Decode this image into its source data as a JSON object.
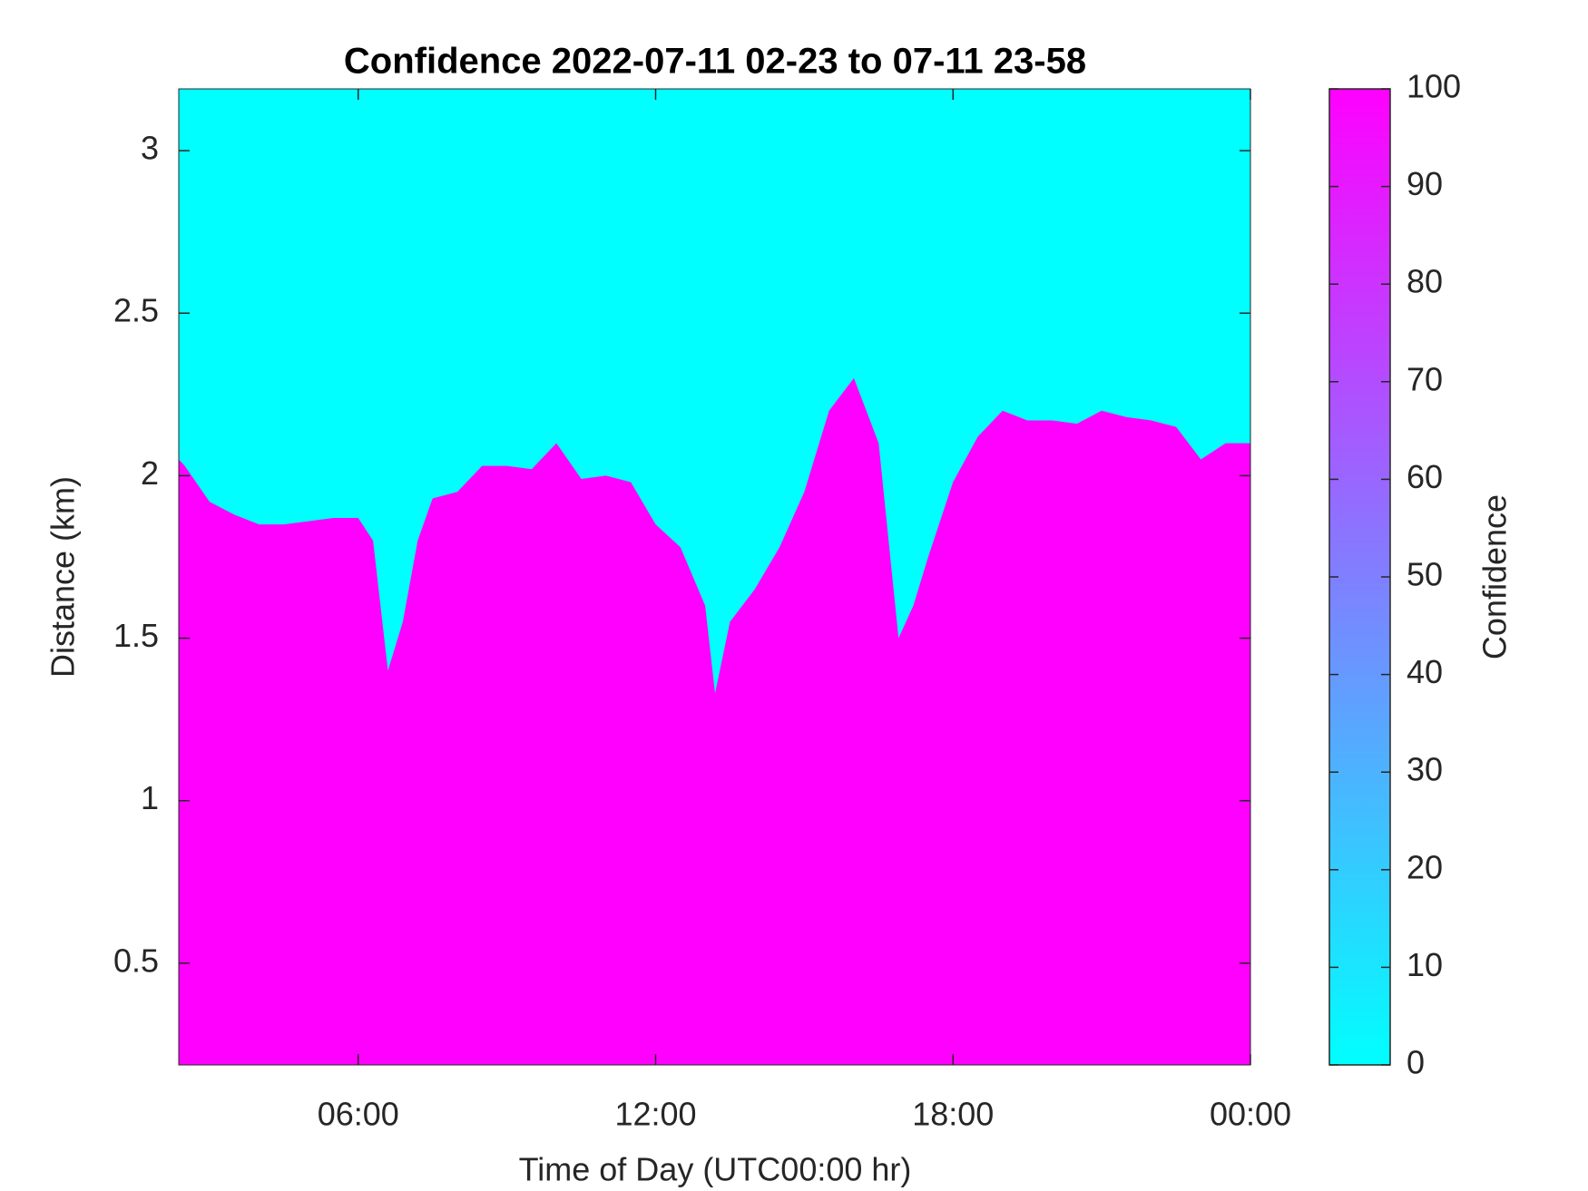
{
  "chart_data": {
    "type": "area",
    "title": "Confidence 2022-07-11 02-23 to 07-11 23-58",
    "xlabel": "Time of Day (UTC00:00 hr)",
    "ylabel": "Distance (km)",
    "x": [
      2.38,
      2.5,
      3,
      3.5,
      4,
      4.5,
      5,
      5.5,
      6,
      6.3,
      6.6,
      6.9,
      7.2,
      7.5,
      8,
      8.5,
      9,
      9.5,
      10,
      10.5,
      11,
      11.5,
      12,
      12.5,
      13,
      13.2,
      13.5,
      14,
      14.5,
      15,
      15.5,
      16,
      16.5,
      16.9,
      17.2,
      17.5,
      18,
      18.5,
      19,
      19.5,
      20,
      20.5,
      21,
      21.5,
      22,
      22.5,
      23,
      23.5,
      24
    ],
    "values": [
      2.05,
      2.03,
      1.92,
      1.88,
      1.85,
      1.85,
      1.86,
      1.87,
      1.87,
      1.8,
      1.4,
      1.55,
      1.8,
      1.93,
      1.95,
      2.03,
      2.03,
      2.02,
      2.1,
      1.99,
      2.0,
      1.98,
      1.85,
      1.78,
      1.6,
      1.33,
      1.55,
      1.65,
      1.78,
      1.95,
      2.2,
      2.3,
      2.1,
      1.5,
      1.6,
      1.75,
      1.98,
      2.12,
      2.2,
      2.17,
      2.17,
      2.16,
      2.2,
      2.18,
      2.17,
      2.15,
      2.05,
      2.1,
      2.1
    ],
    "color": "#ff00ff",
    "background_color": "#00ffff",
    "xlim": [
      2.38,
      24
    ],
    "ylim": [
      0.187,
      3.19
    ],
    "xticks": [
      {
        "value": 6,
        "label": "06:00"
      },
      {
        "value": 12,
        "label": "12:00"
      },
      {
        "value": 18,
        "label": "18:00"
      },
      {
        "value": 24,
        "label": "00:00"
      }
    ],
    "yticks": [
      0.5,
      1,
      1.5,
      2,
      2.5,
      3
    ],
    "colorbar": {
      "label": "Confidence",
      "lim": [
        0,
        100
      ],
      "ticks": [
        0,
        10,
        20,
        30,
        40,
        50,
        60,
        70,
        80,
        90,
        100
      ],
      "colors": [
        "#00ffff",
        "#ff00ff"
      ]
    }
  }
}
